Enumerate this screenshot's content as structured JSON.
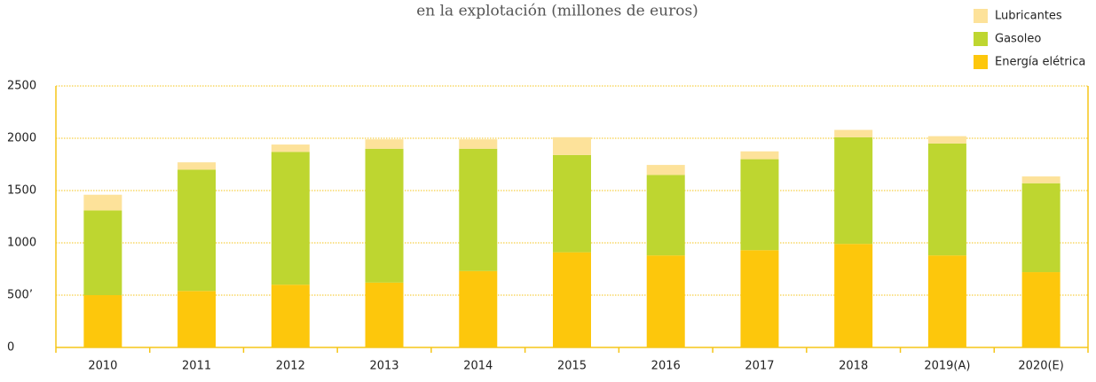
{
  "chart_data": {
    "type": "stacked_bar",
    "title": "en la explotación (millones de euros)",
    "categories": [
      "2010",
      "2011",
      "2012",
      "2013",
      "2014",
      "2015",
      "2016",
      "2017",
      "2018",
      "2019(A)",
      "2020(E)"
    ],
    "series": [
      {
        "name": "Energía elétrica",
        "color": "#fdc70c",
        "values": [
          500,
          540,
          600,
          620,
          730,
          910,
          880,
          930,
          990,
          880,
          720
        ]
      },
      {
        "name": "Gasoleo",
        "color": "#bed630",
        "values": [
          810,
          1160,
          1270,
          1280,
          1170,
          930,
          770,
          870,
          1020,
          1070,
          850
        ]
      },
      {
        "name": "Lubricantes",
        "color": "#fde29a",
        "values": [
          150,
          70,
          70,
          90,
          90,
          170,
          95,
          75,
          70,
          70,
          65
        ]
      }
    ],
    "ylim": [
      0,
      2500
    ],
    "yticks": [
      0,
      {
        "value": 500,
        "label": "500’"
      },
      1000,
      1500,
      2000,
      2500
    ],
    "grid": true,
    "legend": "top-right"
  }
}
